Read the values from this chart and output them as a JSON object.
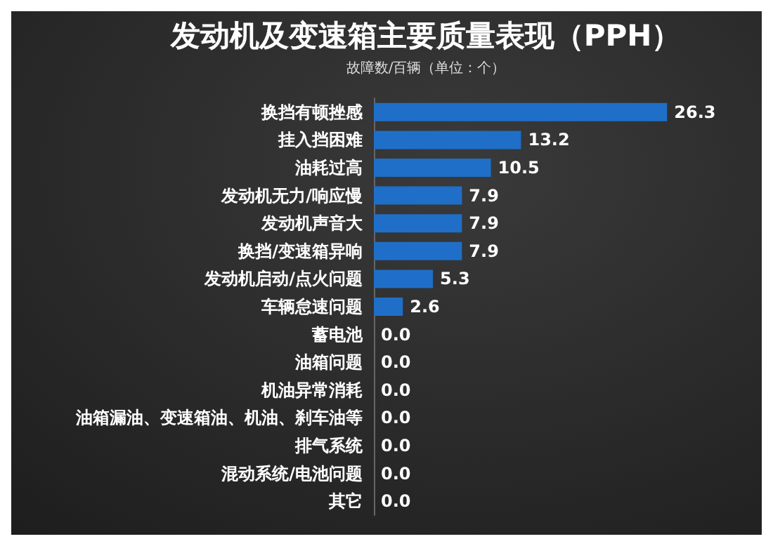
{
  "chart_data": {
    "type": "bar",
    "orientation": "horizontal",
    "title": "发动机及变速箱主要质量表现（PPH）",
    "subtitle": "故障数/百辆（单位：个）",
    "categories": [
      "换挡有顿挫感",
      "挂入挡困难",
      "油耗过高",
      "发动机无力/响应慢",
      "发动机声音大",
      "换挡/变速箱异响",
      "发动机启动/点火问题",
      "车辆怠速问题",
      "蓄电池",
      "油箱问题",
      "机油异常消耗",
      "油箱漏油、变速箱油、机油、刹车油等",
      "排气系统",
      "混动系统/电池问题",
      "其它"
    ],
    "values": [
      26.3,
      13.2,
      10.5,
      7.9,
      7.9,
      7.9,
      5.3,
      2.6,
      0,
      0,
      0,
      0,
      0,
      0,
      0
    ],
    "value_labels": [
      "26.3",
      "13.2",
      "10.5",
      "7.9",
      "7.9",
      "7.9",
      "5.3",
      "2.6",
      "0.0",
      "0.0",
      "0.0",
      "0.0",
      "0.0",
      "0.0",
      "0.0"
    ],
    "color": "#1f6fc8"
  }
}
